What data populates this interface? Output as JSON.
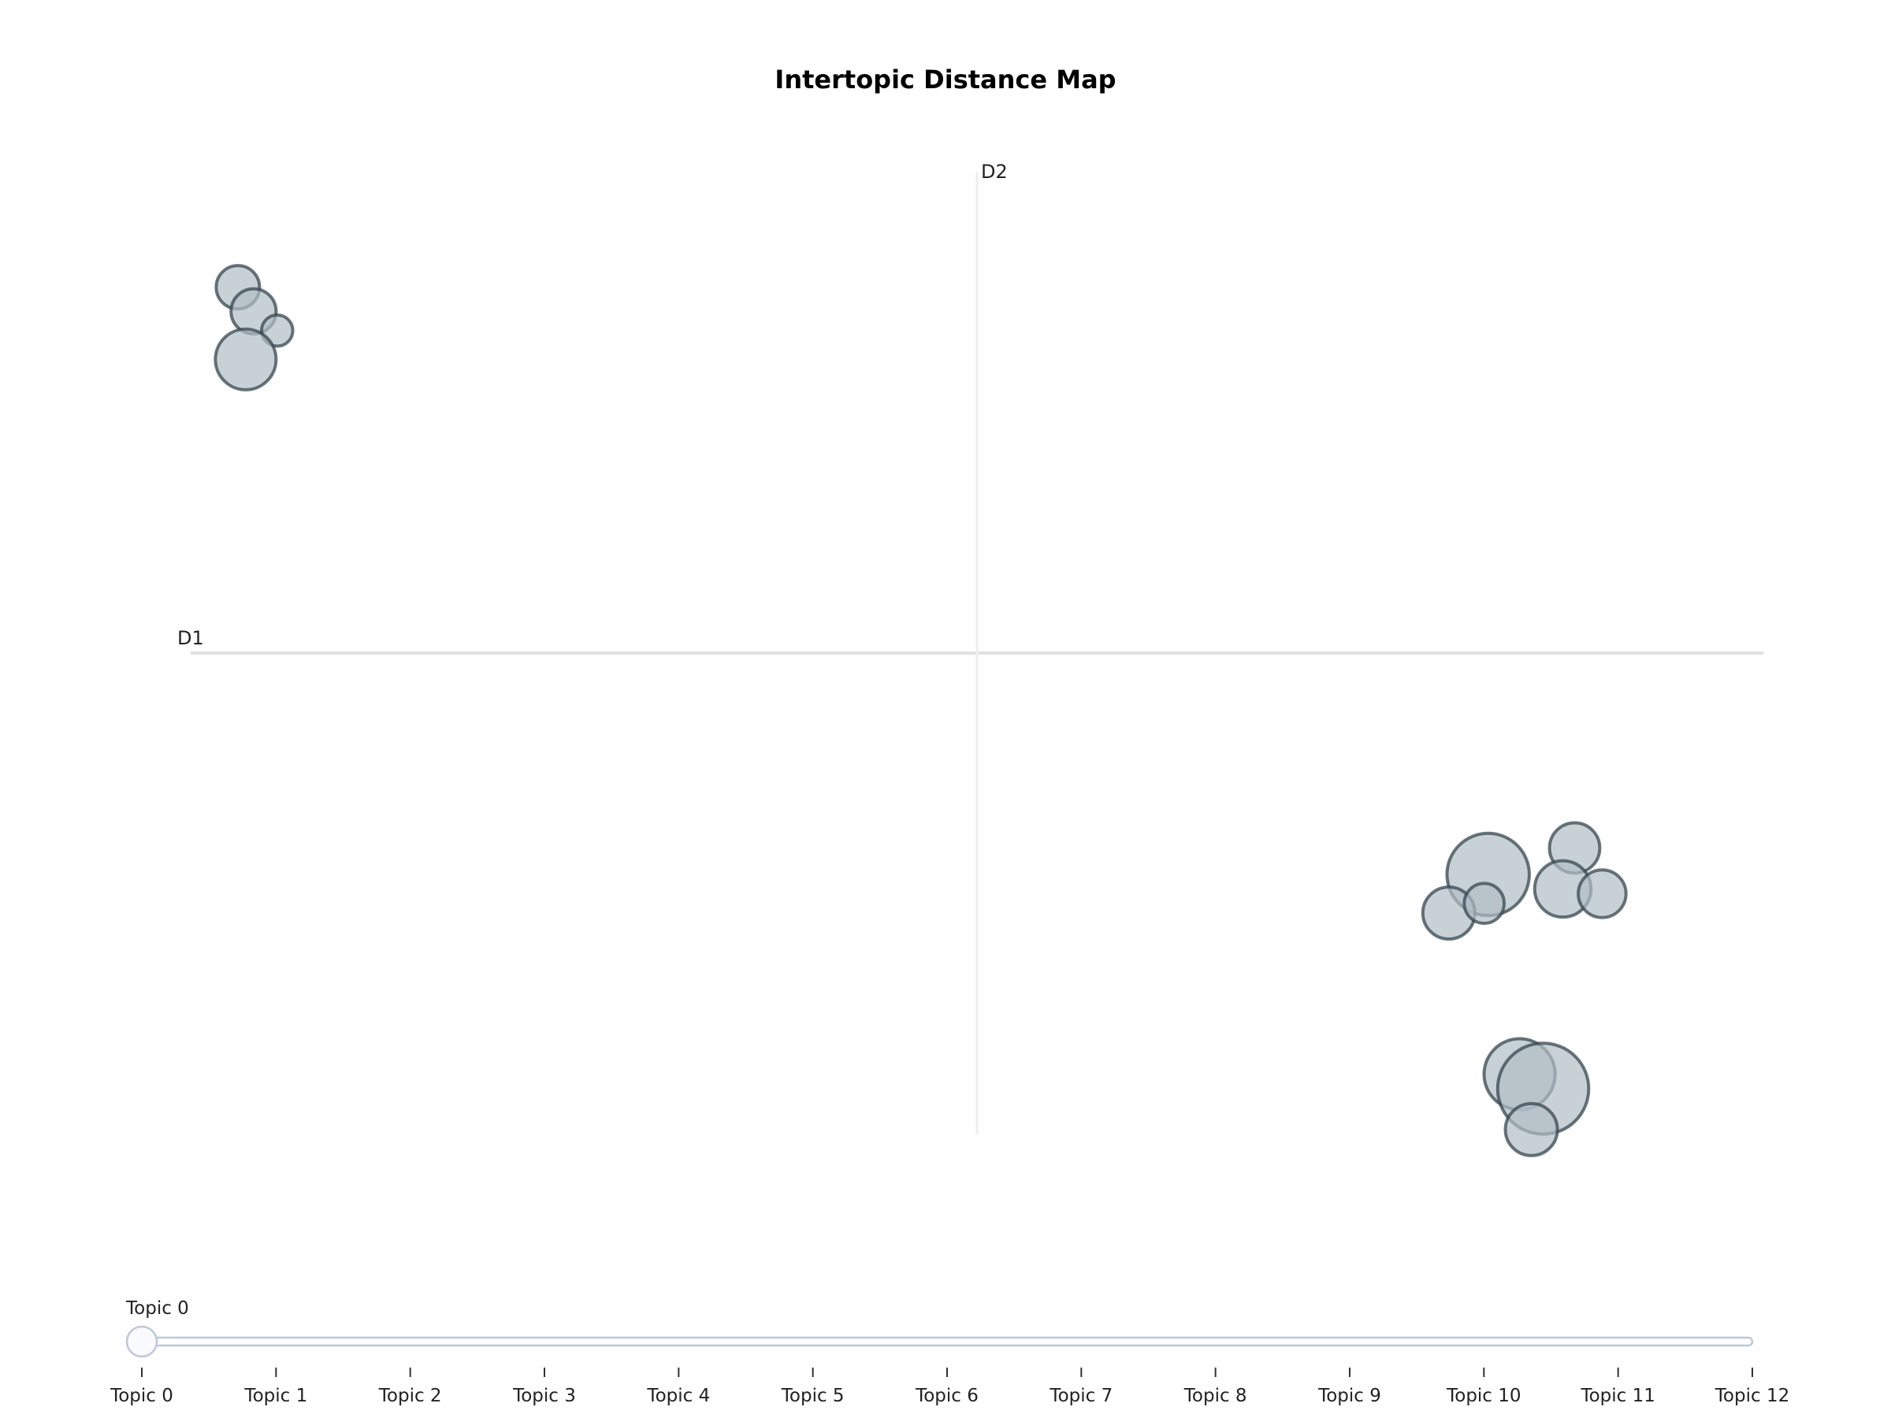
{
  "chart_data": {
    "type": "scatter",
    "title": "Intertopic Distance Map",
    "xlabel": "D1",
    "ylabel": "D2",
    "grid": false,
    "bubble_color": "#b0bec5",
    "bubble_edge_color": "#37474f",
    "axis_line_color": "#e0e0e0",
    "xlim": [
      -10,
      10
    ],
    "ylim": [
      -10,
      10
    ],
    "points": [
      {
        "x": -9.4,
        "y": 7.6,
        "size": 0.5
      },
      {
        "x": -9.2,
        "y": 7.1,
        "size": 0.52
      },
      {
        "x": -8.9,
        "y": 6.7,
        "size": 0.36
      },
      {
        "x": -9.3,
        "y": 6.1,
        "size": 0.7
      },
      {
        "x": 6.5,
        "y": -4.6,
        "size": 0.95
      },
      {
        "x": 7.6,
        "y": -4.05,
        "size": 0.58
      },
      {
        "x": 7.45,
        "y": -4.9,
        "size": 0.65
      },
      {
        "x": 7.95,
        "y": -5.0,
        "size": 0.55
      },
      {
        "x": 6.0,
        "y": -5.4,
        "size": 0.6
      },
      {
        "x": 6.45,
        "y": -5.2,
        "size": 0.46
      },
      {
        "x": 6.9,
        "y": -8.75,
        "size": 0.82
      },
      {
        "x": 7.2,
        "y": -9.05,
        "size": 1.05
      },
      {
        "x": 7.05,
        "y": -9.9,
        "size": 0.6
      }
    ]
  },
  "slider": {
    "current_label": "Topic 0",
    "current_index": 0,
    "ticks": [
      "Topic 0",
      "Topic 1",
      "Topic 2",
      "Topic 3",
      "Topic 4",
      "Topic 5",
      "Topic 6",
      "Topic 7",
      "Topic 8",
      "Topic 9",
      "Topic 10",
      "Topic 11",
      "Topic 12"
    ],
    "track_color": "#bec8d9",
    "handle_color": "#f8fafc"
  }
}
